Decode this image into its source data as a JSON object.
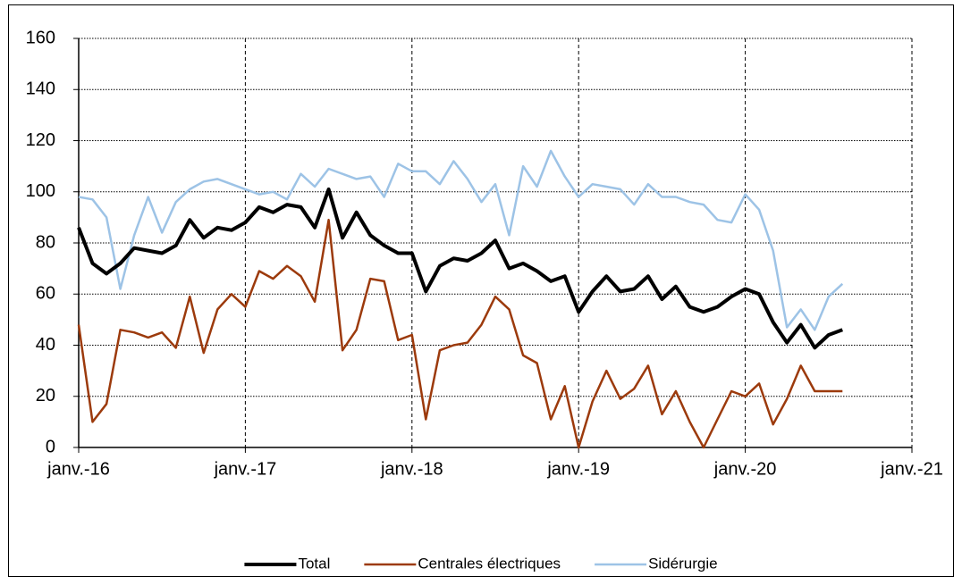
{
  "chart_data": {
    "type": "line",
    "x": [
      "2016-01",
      "2016-02",
      "2016-03",
      "2016-04",
      "2016-05",
      "2016-06",
      "2016-07",
      "2016-08",
      "2016-09",
      "2016-10",
      "2016-11",
      "2016-12",
      "2017-01",
      "2017-02",
      "2017-03",
      "2017-04",
      "2017-05",
      "2017-06",
      "2017-07",
      "2017-08",
      "2017-09",
      "2017-10",
      "2017-11",
      "2017-12",
      "2018-01",
      "2018-02",
      "2018-03",
      "2018-04",
      "2018-05",
      "2018-06",
      "2018-07",
      "2018-08",
      "2018-09",
      "2018-10",
      "2018-11",
      "2018-12",
      "2019-01",
      "2019-02",
      "2019-03",
      "2019-04",
      "2019-05",
      "2019-06",
      "2019-07",
      "2019-08",
      "2019-09",
      "2019-10",
      "2019-11",
      "2019-12",
      "2020-01",
      "2020-02",
      "2020-03",
      "2020-04",
      "2020-05",
      "2020-06",
      "2020-07",
      "2020-08"
    ],
    "series": [
      {
        "name": "Total",
        "color": "#000000",
        "values": [
          86,
          72,
          68,
          72,
          78,
          77,
          76,
          79,
          89,
          82,
          86,
          85,
          88,
          94,
          92,
          95,
          94,
          86,
          101,
          82,
          92,
          83,
          79,
          76,
          76,
          61,
          71,
          74,
          73,
          76,
          81,
          70,
          72,
          69,
          65,
          67,
          53,
          61,
          67,
          61,
          62,
          67,
          58,
          63,
          55,
          53,
          55,
          59,
          62,
          60,
          49,
          41,
          48,
          39,
          44,
          46
        ]
      },
      {
        "name": "Centrales électriques",
        "color": "#9c3a0c",
        "values": [
          48,
          10,
          17,
          46,
          45,
          43,
          45,
          39,
          59,
          37,
          54,
          60,
          55,
          69,
          66,
          71,
          67,
          57,
          89,
          38,
          46,
          66,
          65,
          42,
          44,
          11,
          38,
          40,
          41,
          48,
          59,
          54,
          36,
          33,
          11,
          24,
          0,
          18,
          30,
          19,
          23,
          32,
          13,
          22,
          10,
          0,
          11,
          22,
          20,
          25,
          9,
          19,
          32,
          22,
          22,
          22
        ]
      },
      {
        "name": "Sidérurgie",
        "color": "#9dc3e6",
        "values": [
          98,
          97,
          90,
          62,
          83,
          98,
          84,
          96,
          101,
          104,
          105,
          103,
          101,
          99,
          100,
          97,
          107,
          102,
          109,
          107,
          105,
          106,
          98,
          111,
          108,
          108,
          103,
          112,
          105,
          96,
          103,
          83,
          110,
          102,
          116,
          106,
          98,
          103,
          102,
          101,
          95,
          103,
          98,
          98,
          96,
          95,
          89,
          88,
          99,
          93,
          77,
          47,
          54,
          46,
          59,
          64
        ]
      }
    ],
    "xlim": [
      "2016-01",
      "2021-01"
    ],
    "xticks": [
      {
        "value": "2016-01",
        "label": "janv.-16"
      },
      {
        "value": "2017-01",
        "label": "janv.-17"
      },
      {
        "value": "2018-01",
        "label": "janv.-18"
      },
      {
        "value": "2019-01",
        "label": "janv.-19"
      },
      {
        "value": "2020-01",
        "label": "janv.-20"
      },
      {
        "value": "2021-01",
        "label": "janv.-21"
      }
    ],
    "ylim": [
      0,
      160
    ],
    "yticks": [
      0,
      20,
      40,
      60,
      80,
      100,
      120,
      140,
      160
    ],
    "grid": true,
    "legend": "bottom"
  }
}
